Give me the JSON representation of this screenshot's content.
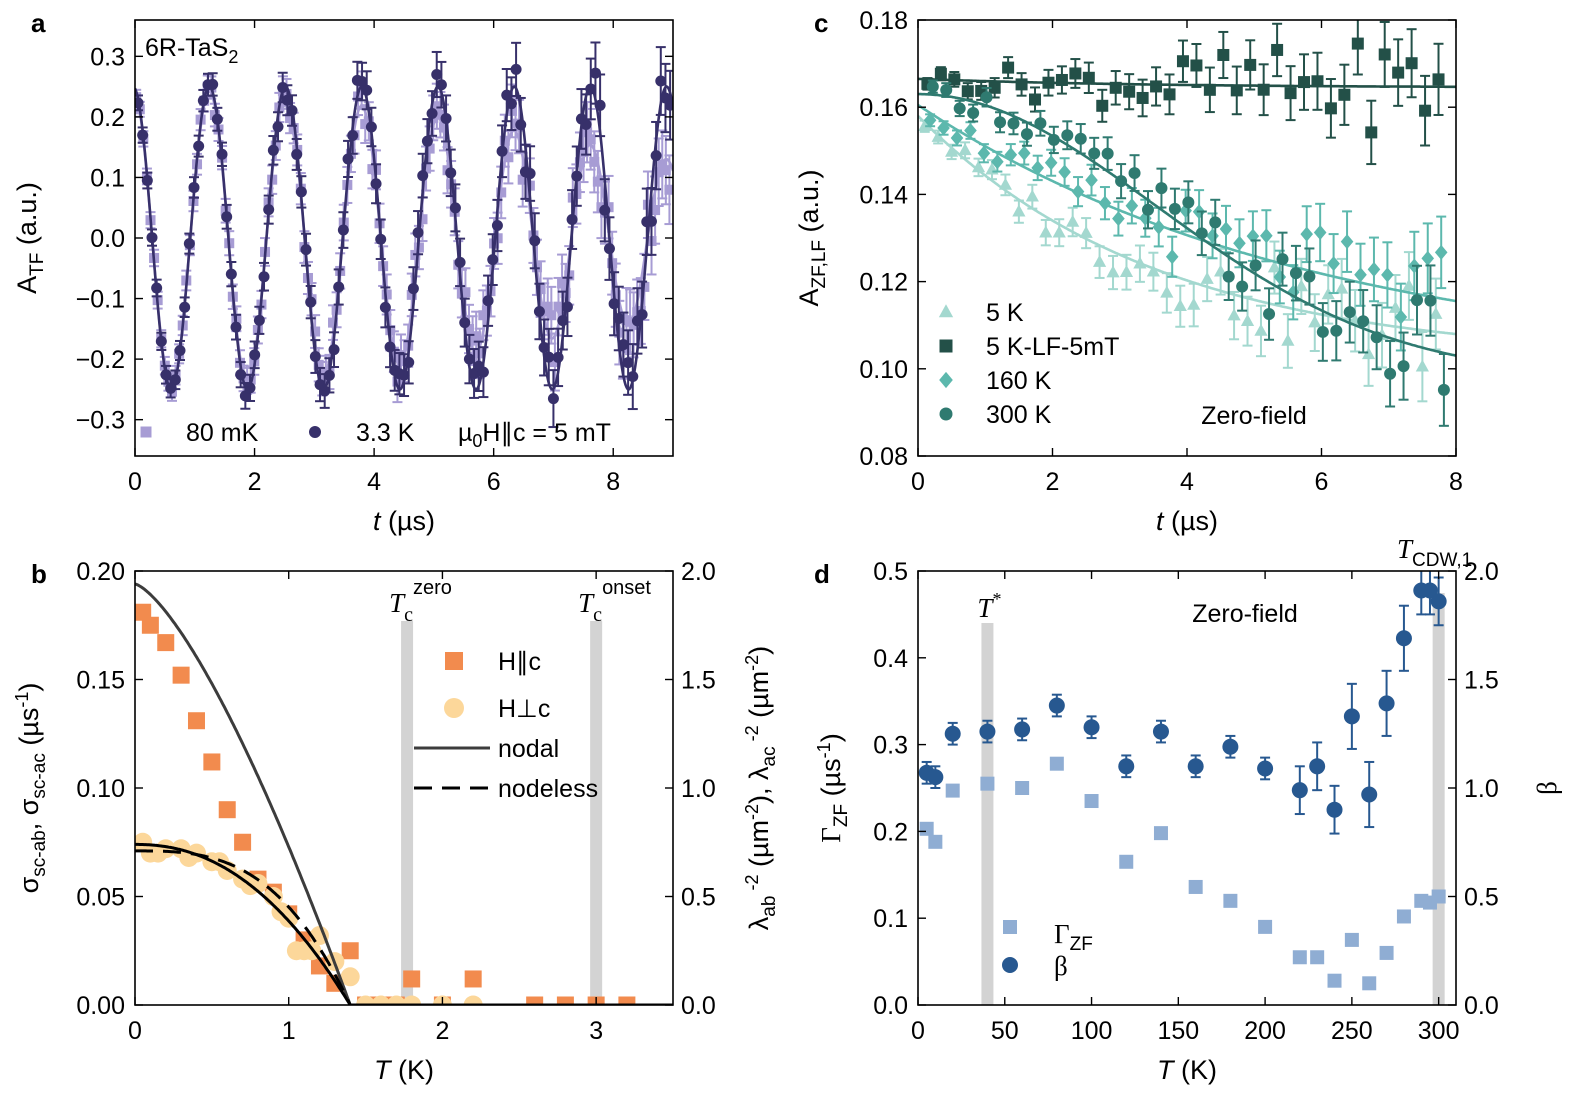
{
  "colors": {
    "a_80mK": "#a79cd4",
    "a_33K": "#37306a",
    "c_5K": "#a3d8cf",
    "c_5KLF": "#235048",
    "c_160K": "#5cb8ad",
    "c_300K": "#2f7a70",
    "b_par": "#f28b4e",
    "b_perp": "#fcd79a",
    "d_gamma": "#8fadd3",
    "d_beta": "#275890",
    "vband": "#d3d3d3"
  },
  "chart_data": [
    {
      "id": "a",
      "type": "scatter",
      "panel_label": "a",
      "annotation": "6R-TaS₂",
      "xlabel_italic": "t",
      "xlabel_rest": " (µs)",
      "ylabel_main": "A",
      "ylabel_sub": "TF",
      "ylabel_rest": " (a.u.)",
      "xlim": [
        0,
        9
      ],
      "ylim": [
        -0.36,
        0.36
      ],
      "xticks": [
        0,
        2,
        4,
        6,
        8
      ],
      "xtick_labels": [
        "0",
        "2",
        "4",
        "6",
        "8"
      ],
      "yticks": [
        -0.3,
        -0.2,
        -0.1,
        0.0,
        0.1,
        0.2,
        0.3
      ],
      "ytick_labels": [
        "−0.3",
        "−0.2",
        "−0.1",
        "0.0",
        "0.1",
        "0.2",
        "0.3"
      ],
      "field_label": "µ₀H∥c = 5 mT",
      "series": [
        {
          "name": "80 mK",
          "marker": "square",
          "color": "#a79cd4",
          "amplitude": 0.245,
          "period": 1.275,
          "phase": 0.08,
          "decay": 0.008,
          "offset": 0.0
        },
        {
          "name": "3.3 K",
          "marker": "circle",
          "color": "#37306a",
          "amplitude": 0.25,
          "period": 1.275,
          "phase": 0.08,
          "decay": 0.0,
          "offset": 0.0
        }
      ]
    },
    {
      "id": "b",
      "type": "scatter",
      "panel_label": "b",
      "xlabel_italic": "T",
      "xlabel_rest": " (K)",
      "ylabel_left": "σsc-ab, σsc-ac (µs⁻¹)",
      "ylabel_right": "λab⁻² (µm⁻²), λac⁻² (µm⁻²)",
      "xlim": [
        0,
        3.5
      ],
      "ylim": [
        0,
        0.2
      ],
      "y2lim": [
        0,
        2.0
      ],
      "xticks": [
        0,
        1,
        2,
        3
      ],
      "xtick_labels": [
        "0",
        "1",
        "2",
        "3"
      ],
      "yticks": [
        0,
        0.05,
        0.1,
        0.15,
        0.2
      ],
      "ytick_labels": [
        "0.00",
        "0.05",
        "0.10",
        "0.15",
        "0.20"
      ],
      "y2ticks": [
        0,
        0.5,
        1.0,
        1.5,
        2.0
      ],
      "y2tick_labels": [
        "0.0",
        "0.5",
        "1.0",
        "1.5",
        "2.0"
      ],
      "vlines": [
        {
          "x": 1.77,
          "label_base": "T",
          "label_sub": "c",
          "label_sup": "zero"
        },
        {
          "x": 3.0,
          "label_base": "T",
          "label_sub": "c",
          "label_sup": "onset"
        }
      ],
      "legend": [
        "H∥c",
        "H⊥c",
        "nodal",
        "nodeless"
      ],
      "series": [
        {
          "name": "H∥c",
          "marker": "square",
          "color": "#f28b4e",
          "x": [
            0.05,
            0.1,
            0.2,
            0.3,
            0.4,
            0.5,
            0.6,
            0.7,
            0.8,
            0.9,
            1.0,
            1.1,
            1.2,
            1.3,
            1.4,
            1.5,
            1.6,
            1.7,
            1.8,
            2.0,
            2.2,
            2.6,
            2.8,
            3.0,
            3.2
          ],
          "y": [
            0.181,
            0.175,
            0.167,
            0.152,
            0.131,
            0.112,
            0.09,
            0.075,
            0.058,
            0.052,
            0.042,
            0.03,
            0.018,
            0.01,
            0.025,
            0.0,
            0.0,
            0.0,
            0.012,
            0.0,
            0.012,
            0.0,
            0.0,
            0.0,
            0.0
          ]
        },
        {
          "name": "H⊥c",
          "marker": "circle",
          "color": "#fcd79a",
          "x": [
            0.05,
            0.1,
            0.15,
            0.2,
            0.3,
            0.35,
            0.4,
            0.5,
            0.55,
            0.6,
            0.7,
            0.75,
            0.8,
            0.9,
            0.95,
            1.0,
            1.05,
            1.1,
            1.15,
            1.2,
            1.3,
            1.4,
            1.5,
            1.6,
            1.7,
            1.8,
            2.0,
            2.2
          ],
          "y": [
            0.075,
            0.07,
            0.07,
            0.072,
            0.072,
            0.068,
            0.07,
            0.066,
            0.066,
            0.062,
            0.058,
            0.055,
            0.056,
            0.05,
            0.043,
            0.04,
            0.025,
            0.025,
            0.025,
            0.032,
            0.02,
            0.013,
            0.0,
            0.0,
            0.0,
            0.0,
            0.0,
            0.0
          ]
        },
        {
          "name": "nodal",
          "line": "solid-dark",
          "fit_to": "H∥c",
          "s0": 0.194,
          "tc": 1.4,
          "p": 1.4
        },
        {
          "name": "nodal",
          "line": "solid-black",
          "fit_to": "H⊥c",
          "s0": 0.074,
          "tc": 1.4,
          "p": 2.2
        },
        {
          "name": "nodeless",
          "line": "dashed",
          "fit_to": "H⊥c",
          "s0": 0.071,
          "tc": 1.4,
          "p": 3.0
        }
      ]
    },
    {
      "id": "c",
      "type": "scatter",
      "panel_label": "c",
      "xlabel_italic": "t",
      "xlabel_rest": " (µs)",
      "ylabel_main": "A",
      "ylabel_sub": "ZF,LF",
      "ylabel_rest": " (a.u.)",
      "xlim": [
        0,
        8
      ],
      "ylim": [
        0.08,
        0.18
      ],
      "xticks": [
        0,
        2,
        4,
        6,
        8
      ],
      "xtick_labels": [
        "0",
        "2",
        "4",
        "6",
        "8"
      ],
      "yticks": [
        0.08,
        0.1,
        0.12,
        0.14,
        0.16,
        0.18
      ],
      "ytick_labels": [
        "0.08",
        "0.10",
        "0.12",
        "0.14",
        "0.16",
        "0.18"
      ],
      "annotation": "Zero-field",
      "legend": [
        "5 K",
        "5 K-LF-5mT",
        "160 K",
        "300 K"
      ],
      "series": [
        {
          "name": "5 K",
          "marker": "triangle",
          "color": "#a3d8cf",
          "a0": 0.158,
          "ainf": 0.102,
          "rate": 0.28,
          "shape": "exp"
        },
        {
          "name": "5 K-LF-5mT",
          "marker": "square",
          "color": "#235048",
          "a0": 0.1665,
          "ainf": 0.1645,
          "rate": 0.3,
          "shape": "exp"
        },
        {
          "name": "160 K",
          "marker": "diamond",
          "color": "#5cb8ad",
          "a0": 0.1605,
          "ainf": 0.1,
          "rate": 0.17,
          "shape": "exp"
        },
        {
          "name": "300 K",
          "marker": "circle",
          "color": "#2f7a70",
          "a0": 0.163,
          "ainf": 0.098,
          "rate": 0.2,
          "shape": "gauss"
        }
      ]
    },
    {
      "id": "d",
      "type": "scatter",
      "panel_label": "d",
      "xlabel_italic": "T",
      "xlabel_rest": " (K)",
      "ylabel_left": "ΓZF (µs⁻¹)",
      "ylabel_right": "β",
      "xlim": [
        0,
        310
      ],
      "ylim": [
        0,
        0.5
      ],
      "y2lim": [
        0,
        2.0
      ],
      "xticks": [
        0,
        50,
        100,
        150,
        200,
        250,
        300
      ],
      "xtick_labels": [
        "0",
        "50",
        "100",
        "150",
        "200",
        "250",
        "300"
      ],
      "yticks": [
        0,
        0.1,
        0.2,
        0.3,
        0.4,
        0.5
      ],
      "ytick_labels": [
        "0.0",
        "0.1",
        "0.2",
        "0.3",
        "0.4",
        "0.5"
      ],
      "y2ticks": [
        0,
        0.5,
        1.0,
        1.5,
        2.0
      ],
      "y2tick_labels": [
        "0.0",
        "0.5",
        "1.0",
        "1.5",
        "2.0"
      ],
      "annotation": "Zero-field",
      "vlines": [
        {
          "x": 40,
          "label_base": "T",
          "label_sub": "",
          "label_sup": "*"
        },
        {
          "x": 300,
          "label_base": "T",
          "label_sub": "CDW,1",
          "label_sup": ""
        }
      ],
      "legend": [
        "ΓZF",
        "β"
      ],
      "series": [
        {
          "name": "ΓZF",
          "marker": "square",
          "color": "#8fadd3",
          "x": [
            5,
            10,
            20,
            40,
            60,
            80,
            100,
            120,
            140,
            160,
            180,
            200,
            220,
            230,
            240,
            250,
            260,
            270,
            280,
            290,
            295,
            300
          ],
          "y": [
            0.203,
            0.188,
            0.247,
            0.255,
            0.25,
            0.278,
            0.235,
            0.165,
            0.198,
            0.136,
            0.12,
            0.09,
            0.055,
            0.055,
            0.028,
            0.075,
            0.025,
            0.06,
            0.102,
            0.12,
            0.118,
            0.125
          ]
        },
        {
          "name": "β",
          "marker": "circle",
          "color": "#275890",
          "x": [
            5,
            10,
            20,
            40,
            60,
            80,
            100,
            120,
            140,
            160,
            180,
            200,
            220,
            230,
            240,
            250,
            260,
            270,
            280,
            290,
            295,
            300
          ],
          "y": [
            1.07,
            1.05,
            1.25,
            1.26,
            1.27,
            1.38,
            1.28,
            1.1,
            1.26,
            1.1,
            1.19,
            1.09,
            0.99,
            1.1,
            0.9,
            1.33,
            0.97,
            1.39,
            1.69,
            1.91,
            1.91,
            1.86
          ]
        }
      ]
    }
  ]
}
